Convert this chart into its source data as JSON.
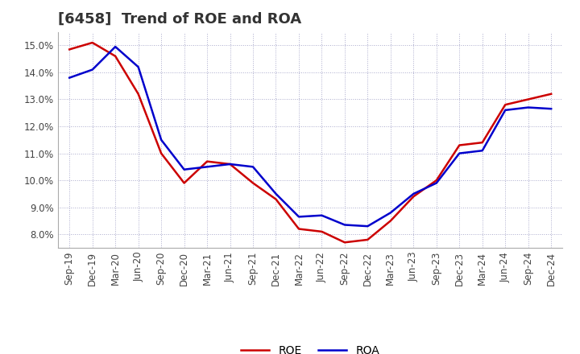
{
  "title": "[6458]  Trend of ROE and ROA",
  "x_labels": [
    "Sep-19",
    "Dec-19",
    "Mar-20",
    "Jun-20",
    "Sep-20",
    "Dec-20",
    "Mar-21",
    "Jun-21",
    "Sep-21",
    "Dec-21",
    "Mar-22",
    "Jun-22",
    "Sep-22",
    "Dec-22",
    "Mar-23",
    "Jun-23",
    "Sep-23",
    "Dec-23",
    "Mar-24",
    "Jun-24",
    "Sep-24",
    "Dec-24"
  ],
  "roe": [
    14.85,
    15.1,
    14.6,
    13.2,
    11.0,
    9.9,
    10.7,
    10.6,
    9.9,
    9.3,
    8.2,
    8.1,
    7.7,
    7.8,
    8.5,
    9.4,
    10.0,
    11.3,
    11.4,
    12.8,
    13.0,
    13.2
  ],
  "roa": [
    13.8,
    14.1,
    14.95,
    14.2,
    11.5,
    10.4,
    10.5,
    10.6,
    10.5,
    9.5,
    8.65,
    8.7,
    8.35,
    8.3,
    8.8,
    9.5,
    9.9,
    11.0,
    11.1,
    12.6,
    12.7,
    12.65
  ],
  "roe_color": "#cc0000",
  "roa_color": "#0000cc",
  "background_color": "#ffffff",
  "grid_color": "#aaaacc",
  "ylim": [
    7.5,
    15.5
  ],
  "yticks": [
    8.0,
    9.0,
    10.0,
    11.0,
    12.0,
    13.0,
    14.0,
    15.0
  ],
  "line_width": 1.8,
  "title_fontsize": 13,
  "tick_fontsize": 8.5
}
